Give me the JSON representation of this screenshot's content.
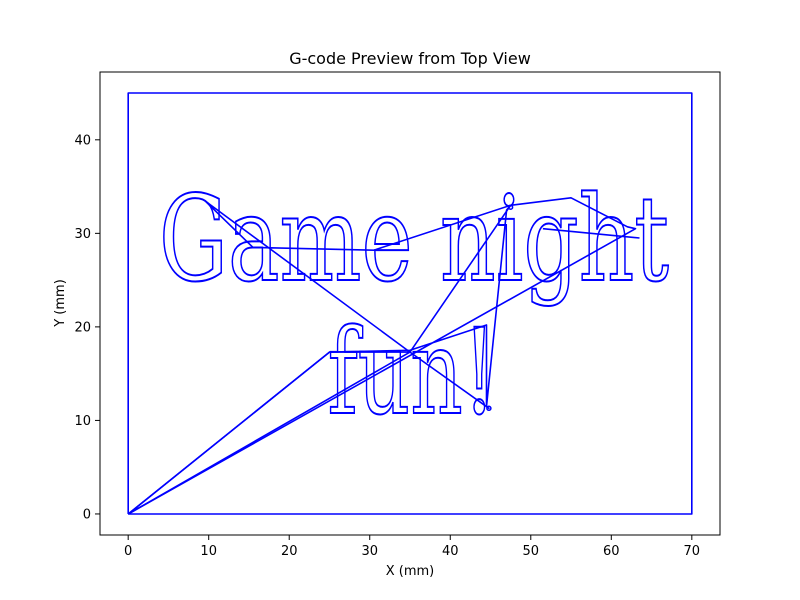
{
  "chart_data": {
    "type": "line",
    "title": "G-code Preview from Top View",
    "xlabel": "X (mm)",
    "ylabel": "Y (mm)",
    "xlim": [
      -3.5,
      73.5
    ],
    "ylim": [
      -2.25,
      47.25
    ],
    "xticks": [
      0,
      10,
      20,
      30,
      40,
      50,
      60,
      70
    ],
    "yticks": [
      0,
      10,
      20,
      30,
      40
    ],
    "grid": false,
    "line_color": "#0000ff",
    "engraved_text": [
      "Game night",
      "fun!"
    ],
    "series": [
      {
        "name": "",
        "kind": "border",
        "x": [
          0,
          0,
          70,
          70,
          0
        ],
        "y": [
          0,
          45,
          45,
          0,
          0
        ]
      },
      {
        "name": "",
        "kind": "travel",
        "x": [
          0,
          25,
          35,
          44.5,
          44.5,
          47,
          47.5,
          55,
          62,
          63,
          0
        ],
        "y": [
          0,
          17.3,
          17.5,
          20.2,
          11.5,
          32.5,
          33,
          33.8,
          30.7,
          30.5,
          0
        ]
      },
      {
        "name": "",
        "kind": "travel",
        "x": [
          0,
          35,
          9.5,
          15.5,
          30.5,
          47.5,
          35,
          25,
          0
        ],
        "y": [
          0,
          17.3,
          33.5,
          28.5,
          28.2,
          33,
          17.3,
          17.3,
          0
        ]
      },
      {
        "name": "",
        "kind": "travel",
        "x": [
          35,
          44.8,
          35
        ],
        "y": [
          17.3,
          11.3,
          17.3
        ]
      },
      {
        "name": "",
        "kind": "travel",
        "x": [
          51.5,
          63.5
        ],
        "y": [
          30.5,
          29.5
        ]
      }
    ]
  }
}
